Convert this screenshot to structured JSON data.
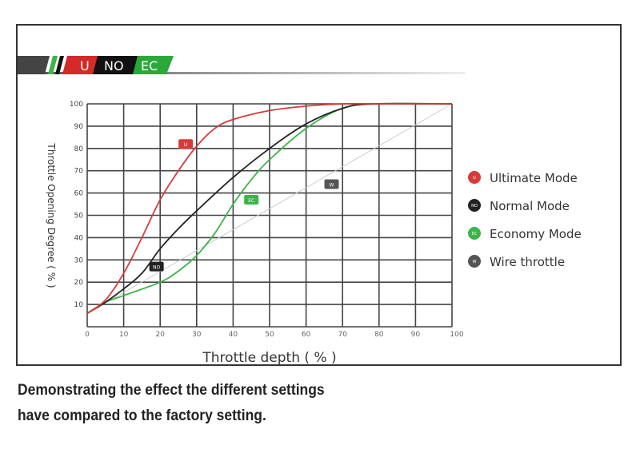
{
  "logo": {
    "segments": [
      "U",
      "NO",
      "EC"
    ],
    "colors": [
      "#d42a2a",
      "#111111",
      "#2aa83a"
    ]
  },
  "caption": {
    "line1": "Demonstrating the effect the different settings",
    "line2": "have compared to the factory setting."
  },
  "chart_data": {
    "type": "line",
    "title": "",
    "xlabel": "Throttle depth ( % )",
    "ylabel": "Throttle Opening Degree ( % )",
    "xlim": [
      0,
      100
    ],
    "ylim": [
      0,
      100
    ],
    "xticks": [
      0,
      10,
      20,
      30,
      40,
      50,
      60,
      70,
      80,
      90,
      100
    ],
    "yticks": [
      10,
      20,
      30,
      40,
      50,
      60,
      70,
      80,
      90,
      100
    ],
    "grid": true,
    "legend": "right",
    "series": [
      {
        "name": "Ultimate Mode",
        "badge": "U",
        "color": "#d83a3a",
        "x": [
          0,
          5,
          10,
          15,
          20,
          25,
          30,
          35,
          40,
          50,
          60,
          70,
          80,
          100
        ],
        "y": [
          6,
          12,
          24,
          40,
          57,
          70,
          81,
          89,
          93,
          97,
          99,
          100,
          100,
          100
        ],
        "label_at": [
          27,
          82
        ]
      },
      {
        "name": "Normal Mode",
        "badge": "NO",
        "color": "#222222",
        "x": [
          0,
          5,
          10,
          15,
          20,
          25,
          30,
          40,
          50,
          60,
          70,
          78,
          100
        ],
        "y": [
          6,
          11,
          17,
          24,
          35,
          44,
          52,
          67,
          80,
          91,
          98,
          100,
          100
        ],
        "label_at": [
          19,
          27
        ]
      },
      {
        "name": "Economy Mode",
        "badge": "EC",
        "color": "#3cb44a",
        "x": [
          0,
          5,
          10,
          20,
          25,
          30,
          35,
          40,
          45,
          50,
          60,
          70,
          80,
          100
        ],
        "y": [
          6,
          11,
          14,
          20,
          25,
          32,
          42,
          55,
          66,
          75,
          89,
          98,
          100,
          100
        ],
        "label_at": [
          45,
          57
        ]
      },
      {
        "name": "Wire throttle",
        "badge": "W",
        "color": "#cccccc",
        "x": [
          0,
          100
        ],
        "y": [
          6,
          100
        ],
        "label_at": [
          67,
          64
        ]
      }
    ]
  }
}
